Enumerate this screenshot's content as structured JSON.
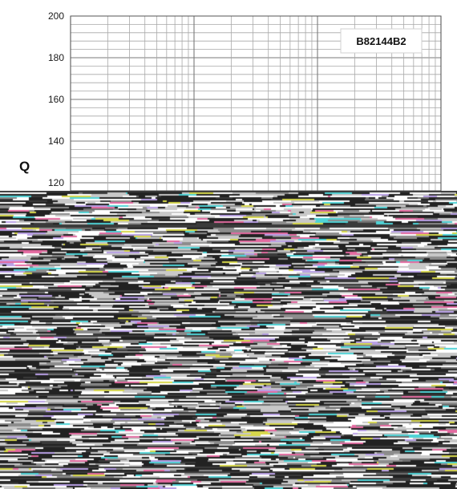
{
  "chart_data": {
    "type": "line",
    "title": "",
    "ylabel": "Q",
    "xlabel": "",
    "yticks": [
      120,
      140,
      160,
      180,
      200
    ],
    "ylim": [
      115,
      200
    ],
    "xscale": "log",
    "grid": true,
    "legend_box_text": "B82144B2",
    "legend_placement": "top-right",
    "series": []
  },
  "colors": {
    "grid_major": "#7a7a7a",
    "grid_minor": "#a8a8a8",
    "frame": "#555555",
    "noise_palette": [
      "#222222",
      "#ffffff",
      "#8c8c8c",
      "#c8c8c8",
      "#e36aa0",
      "#4fd3d6",
      "#d7d84a",
      "#b9a0e6",
      "#6f6f6f",
      "#3a3a3a"
    ]
  }
}
